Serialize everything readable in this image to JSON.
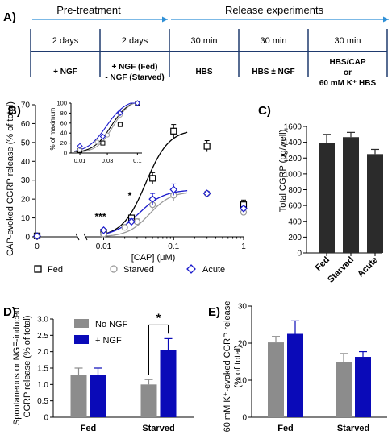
{
  "panel_a": {
    "label": "A)",
    "phase_pre": "Pre-treatment",
    "phase_release": "Release experiments",
    "durations": [
      "2 days",
      "2 days",
      "30 min",
      "30 min",
      "30 min"
    ],
    "conditions": [
      [
        "+ NGF"
      ],
      [
        "+ NGF (Fed)",
        "- NGF (Starved)"
      ],
      [
        "HBS"
      ],
      [
        "HBS ± NGF"
      ],
      [
        "HBS/CAP",
        "or",
        "60 mM K⁺ HBS"
      ]
    ]
  },
  "colors": {
    "fed": "#000000",
    "starved": "#999999",
    "acute": "#1a1acc",
    "dark_bar": "#2b2b2b",
    "grey_bar": "#8c8c8c",
    "blue_bar": "#0a0ab8",
    "arrow": "#2e8fd6"
  },
  "chart_data": [
    {
      "panel": "B)",
      "type": "scatter",
      "x_scale": "log",
      "xlabel": "[CAP] (μM)",
      "ylabel": "CAP-evoked CGRP release (% of total)",
      "xlim": [
        0.0,
        1
      ],
      "ylim": [
        0,
        70
      ],
      "y_ticks": [
        "0",
        "10",
        "20",
        "30",
        "40",
        "50",
        "60",
        "70"
      ],
      "x_ticks": [
        "0",
        "0.01",
        "0.1",
        "1"
      ],
      "series": [
        {
          "name": "Fed",
          "marker": "square",
          "x": [
            0.0,
            0.01,
            0.025,
            0.05,
            0.1,
            0.3,
            1
          ],
          "y": [
            0.5,
            2.5,
            10,
            31,
            56,
            48,
            17
          ],
          "err": [
            0.3,
            0.6,
            1.5,
            3,
            3.5,
            3,
            2.5
          ]
        },
        {
          "name": "Starved",
          "marker": "circle",
          "x": [
            0.0,
            0.01,
            0.02,
            0.03,
            0.05,
            0.1,
            0.3,
            1
          ],
          "y": [
            0.3,
            1.5,
            5,
            8,
            17,
            22,
            23,
            13
          ],
          "err": [
            0.2,
            0.4,
            1,
            1.5,
            2,
            3,
            1,
            1.5
          ]
        },
        {
          "name": "Acute",
          "marker": "diamond",
          "x": [
            0.0,
            0.01,
            0.025,
            0.05,
            0.1,
            0.3,
            1
          ],
          "y": [
            0.4,
            3.5,
            8,
            20,
            25,
            23,
            15
          ],
          "err": [
            0.3,
            0.8,
            1.5,
            3,
            3,
            1,
            1
          ]
        }
      ],
      "annotations": [
        {
          "text": "***",
          "x": 0.01
        },
        {
          "text": "*",
          "x": 0.03
        }
      ],
      "inset": {
        "ylabel": "% of maximum",
        "ylim": [
          0,
          100
        ],
        "y_ticks": [
          "0",
          "20",
          "40",
          "60",
          "80",
          "100"
        ],
        "x_ticks": [
          "0.01",
          "0.03",
          "0.1"
        ],
        "series": [
          {
            "name": "Fed",
            "x": [
              0.01,
              0.025,
              0.05,
              0.1
            ],
            "y": [
              5,
              20,
              57,
              100
            ]
          },
          {
            "name": "Starved",
            "x": [
              0.01,
              0.02,
              0.03,
              0.05,
              0.1
            ],
            "y": [
              7,
              22,
              36,
              76,
              100
            ]
          },
          {
            "name": "Acute",
            "x": [
              0.01,
              0.025,
              0.05,
              0.1
            ],
            "y": [
              14,
              33,
              80,
              100
            ]
          }
        ]
      },
      "legend": [
        "Fed",
        "Starved",
        "Acute"
      ]
    },
    {
      "panel": "C)",
      "type": "bar",
      "categories": [
        "Fed",
        "Starved",
        "Acute"
      ],
      "values": [
        1390,
        1465,
        1250
      ],
      "errors": [
        110,
        60,
        60
      ],
      "ylabel": "Total CGRP (pg/well)",
      "ylim": [
        0,
        1600
      ],
      "y_ticks": [
        "0",
        "200",
        "400",
        "600",
        "800",
        "1000",
        "1200",
        "1400",
        "1600"
      ]
    },
    {
      "panel": "D)",
      "type": "bar",
      "categories": [
        "Fed",
        "Starved"
      ],
      "series": [
        {
          "name": "No NGF",
          "values": [
            1.3,
            1.0
          ],
          "errors": [
            0.2,
            0.15
          ]
        },
        {
          "name": "+ NGF",
          "values": [
            1.3,
            2.05
          ],
          "errors": [
            0.2,
            0.35
          ]
        }
      ],
      "ylabel": "Spontaneous or NGF-induced CGRP release (% of total)",
      "ylim": [
        0,
        3
      ],
      "y_ticks": [
        "0",
        "0.5",
        "1.0",
        "1.5",
        "2.0",
        "2.5",
        "3.0"
      ],
      "annotation": "*"
    },
    {
      "panel": "E)",
      "type": "bar",
      "categories": [
        "Fed",
        "Starved"
      ],
      "series": [
        {
          "name": "No NGF",
          "values": [
            20.2,
            14.8
          ],
          "errors": [
            1.6,
            2.4
          ]
        },
        {
          "name": "+ NGF",
          "values": [
            22.5,
            16.3
          ],
          "errors": [
            3.5,
            1.4
          ]
        }
      ],
      "ylabel": "60 mM K⁺-evoked CGRP release (% of total)",
      "ylim": [
        0,
        30
      ],
      "y_ticks": [
        "0",
        "10",
        "20",
        "30"
      ]
    }
  ]
}
